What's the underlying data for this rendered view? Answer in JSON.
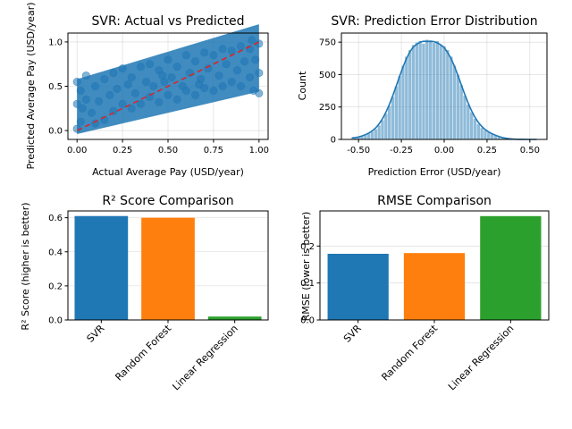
{
  "chart_data": [
    {
      "type": "scatter",
      "title": "SVR: Actual vs Predicted",
      "xlabel": "Actual Average Pay (USD/year)",
      "ylabel": "Predicted Average Pay (USD/year)",
      "xlim": [
        -0.05,
        1.05
      ],
      "ylim": [
        -0.1,
        1.1
      ],
      "xticks": [
        0.0,
        0.25,
        0.5,
        0.75,
        1.0
      ],
      "xticklabels": [
        "0.00",
        "0.25",
        "0.50",
        "0.75",
        "1.00"
      ],
      "yticks": [
        0.0,
        0.5,
        1.0
      ],
      "yticklabels": [
        "0.0",
        "0.5",
        "1.0"
      ],
      "grid": true,
      "point_color": "#1f77b4",
      "series": [
        {
          "points": [
            [
              0.0,
              0.3
            ],
            [
              0.0,
              0.02
            ],
            [
              0.0,
              0.55
            ],
            [
              0.02,
              0.45
            ],
            [
              0.02,
              0.1
            ],
            [
              0.05,
              0.35
            ],
            [
              0.05,
              0.62
            ],
            [
              0.08,
              0.2
            ],
            [
              0.1,
              0.5
            ],
            [
              0.1,
              0.08
            ],
            [
              0.12,
              0.33
            ],
            [
              0.15,
              0.58
            ],
            [
              0.15,
              0.12
            ],
            [
              0.18,
              0.4
            ],
            [
              0.2,
              0.65
            ],
            [
              0.2,
              0.22
            ],
            [
              0.22,
              0.47
            ],
            [
              0.25,
              0.3
            ],
            [
              0.25,
              0.7
            ],
            [
              0.28,
              0.52
            ],
            [
              0.3,
              0.25
            ],
            [
              0.3,
              0.6
            ],
            [
              0.32,
              0.42
            ],
            [
              0.35,
              0.72
            ],
            [
              0.35,
              0.3
            ],
            [
              0.38,
              0.55
            ],
            [
              0.4,
              0.38
            ],
            [
              0.4,
              0.75
            ],
            [
              0.42,
              0.5
            ],
            [
              0.45,
              0.32
            ],
            [
              0.45,
              0.68
            ],
            [
              0.48,
              0.55
            ],
            [
              0.5,
              0.4
            ],
            [
              0.5,
              0.8
            ],
            [
              0.52,
              0.6
            ],
            [
              0.55,
              0.35
            ],
            [
              0.55,
              0.72
            ],
            [
              0.58,
              0.5
            ],
            [
              0.6,
              0.85
            ],
            [
              0.6,
              0.45
            ],
            [
              0.62,
              0.65
            ],
            [
              0.65,
              0.4
            ],
            [
              0.65,
              0.78
            ],
            [
              0.68,
              0.58
            ],
            [
              0.7,
              0.88
            ],
            [
              0.7,
              0.48
            ],
            [
              0.72,
              0.7
            ],
            [
              0.75,
              0.45
            ],
            [
              0.75,
              0.85
            ],
            [
              0.78,
              0.62
            ],
            [
              0.8,
              0.92
            ],
            [
              0.8,
              0.5
            ],
            [
              0.82,
              0.75
            ],
            [
              0.85,
              0.55
            ],
            [
              0.85,
              0.9
            ],
            [
              0.88,
              0.68
            ],
            [
              0.9,
              0.95
            ],
            [
              0.9,
              0.5
            ],
            [
              0.92,
              0.78
            ],
            [
              0.95,
              0.6
            ],
            [
              0.95,
              0.92
            ],
            [
              0.97,
              0.45
            ],
            [
              0.98,
              0.8
            ],
            [
              1.0,
              0.65
            ],
            [
              1.0,
              0.98
            ],
            [
              1.0,
              0.42
            ],
            [
              0.96,
              1.02
            ],
            [
              0.03,
              0.25
            ],
            [
              0.47,
              0.62
            ],
            [
              0.67,
              0.52
            ]
          ]
        },
        {
          "name": "",
          "type": "reference-line",
          "x": [
            0,
            1
          ],
          "y": [
            0,
            1
          ],
          "color": "#d62728"
        }
      ]
    },
    {
      "type": "bar",
      "subtype": "histogram-with-kde",
      "title": "SVR: Prediction Error Distribution",
      "xlabel": "Prediction Error (USD/year)",
      "ylabel": "Count",
      "xlim": [
        -0.6,
        0.6
      ],
      "ylim": [
        0,
        820
      ],
      "xticks": [
        -0.5,
        -0.25,
        0.0,
        0.25,
        0.5
      ],
      "xticklabels": [
        "-0.50",
        "-0.25",
        "0.00",
        "0.25",
        "0.50"
      ],
      "yticks": [
        0,
        250,
        500,
        750
      ],
      "yticklabels": [
        "0",
        "250",
        "500",
        "750"
      ],
      "grid": true,
      "bar_color": "#1f77b4",
      "bins": {
        "start": -0.55,
        "width": 0.02,
        "counts": [
          5,
          10,
          18,
          25,
          35,
          45,
          60,
          80,
          110,
          150,
          200,
          260,
          330,
          410,
          490,
          570,
          640,
          690,
          730,
          750,
          760,
          740,
          770,
          765,
          745,
          760,
          730,
          720,
          690,
          640,
          570,
          500,
          420,
          340,
          270,
          210,
          160,
          120,
          90,
          70,
          55,
          42,
          30,
          20,
          12,
          8,
          4,
          2,
          1,
          0,
          0,
          0,
          0,
          0,
          0
        ]
      }
    },
    {
      "type": "bar",
      "title": "R² Score Comparison",
      "xlabel": "",
      "ylabel": "R² Score (higher is better)",
      "categories": [
        "SVR",
        "Random Forest",
        "Linear Regression"
      ],
      "values": [
        0.61,
        0.6,
        0.02
      ],
      "colors": [
        "#1f77b4",
        "#ff7f0e",
        "#2ca02c"
      ],
      "ylim": [
        0,
        0.64
      ],
      "yticks": [
        0.0,
        0.2,
        0.4,
        0.6
      ],
      "yticklabels": [
        "0.0",
        "0.2",
        "0.4",
        "0.6"
      ],
      "grid": true
    },
    {
      "type": "bar",
      "title": "RMSE Comparison",
      "xlabel": "",
      "ylabel": "RMSE (lower is better)",
      "categories": [
        "SVR",
        "Random Forest",
        "Linear Regression"
      ],
      "values": [
        0.179,
        0.181,
        0.281
      ],
      "colors": [
        "#1f77b4",
        "#ff7f0e",
        "#2ca02c"
      ],
      "ylim": [
        0,
        0.295
      ],
      "yticks": [
        0.0,
        0.1,
        0.2
      ],
      "yticklabels": [
        "0.0",
        "0.1",
        "0.2"
      ],
      "grid": true
    }
  ]
}
